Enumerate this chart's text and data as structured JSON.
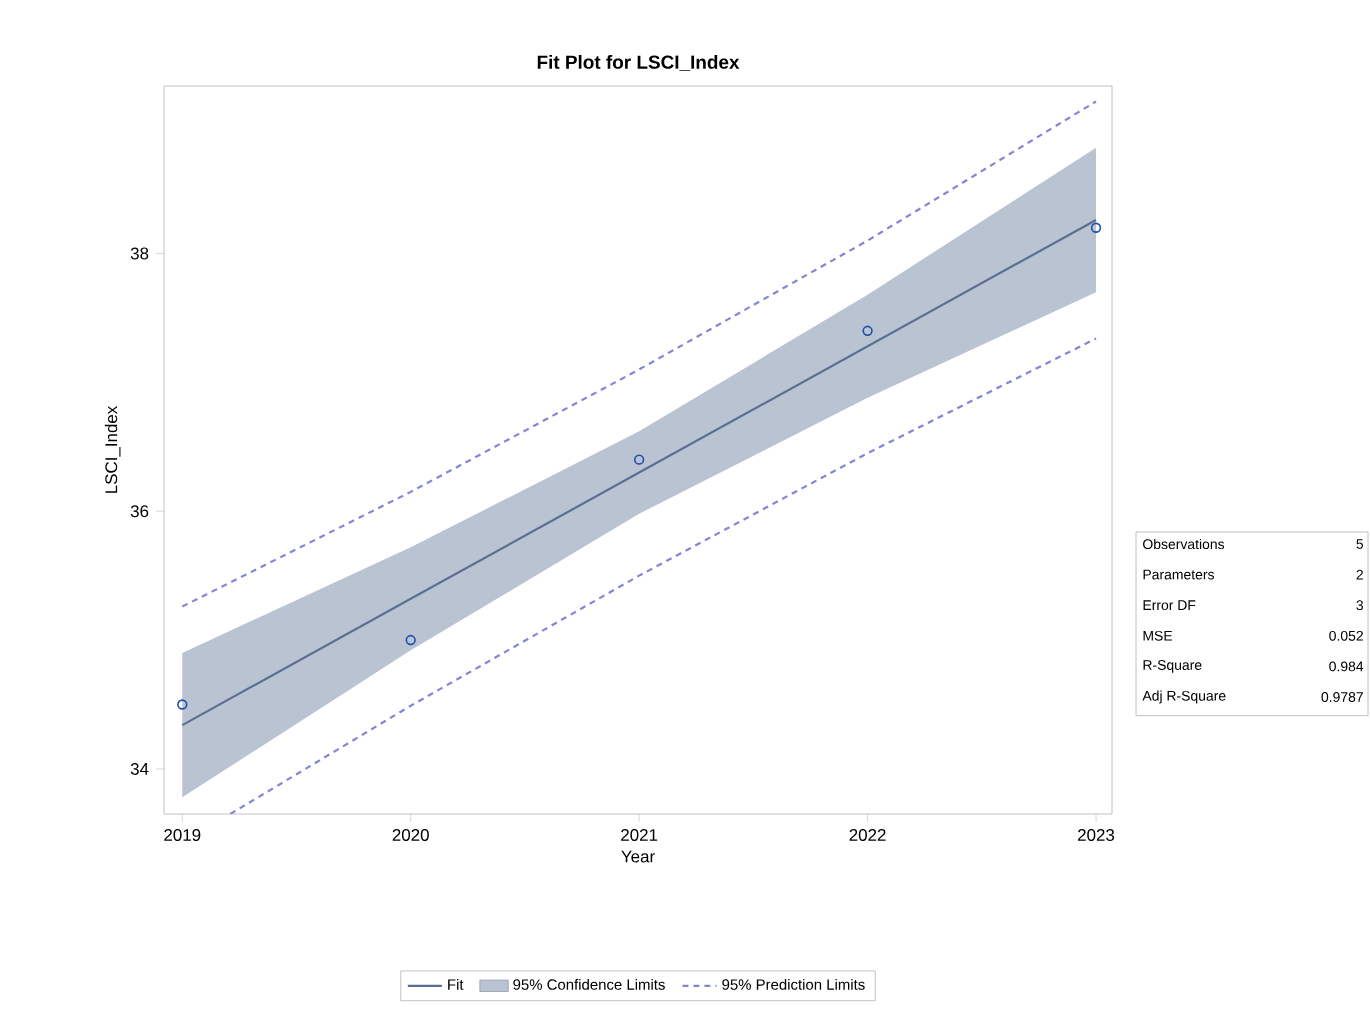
{
  "chart_data": {
    "type": "line",
    "title": "Fit Plot for LSCI_Index",
    "xlabel": "Year",
    "ylabel": "LSCI_Index",
    "x": [
      2019,
      2020,
      2021,
      2022,
      2023
    ],
    "series": [
      {
        "name": "Fit",
        "color": "#5a6f93",
        "line_style": "solid",
        "values": [
          34.34,
          35.32,
          36.3,
          37.28,
          38.26
        ],
        "lower": [
          33.78,
          34.92,
          35.98,
          36.88,
          37.7
        ],
        "upper": [
          34.9,
          35.72,
          36.62,
          37.68,
          38.82
        ]
      },
      {
        "name": "95% Prediction Limits",
        "color": "#8585d6",
        "line_style": "dashed",
        "values": [
          35.26,
          36.15,
          37.1,
          38.1,
          39.18
        ]
      },
      {
        "color": "#8585d6",
        "line_style": "dashed",
        "x": [
          2019.21,
          2020,
          2021,
          2022,
          2023
        ],
        "values": [
          33.65,
          34.49,
          35.5,
          36.45,
          37.34
        ]
      },
      {
        "type": "scatter",
        "color": "#1f4fa8",
        "marker": "circle",
        "values": [
          34.5,
          35.0,
          36.4,
          37.4,
          38.2
        ]
      }
    ],
    "xlim": [
      2018.92,
      2023.07
    ],
    "ylim": [
      33.65,
      39.3
    ],
    "xticks": [
      2019,
      2020,
      2021,
      2022,
      2023
    ],
    "yticks": [
      34,
      36,
      38
    ],
    "grid": false,
    "legend": "bottom",
    "annotations": [
      "Observations",
      "5",
      "Parameters",
      "2",
      "Error DF",
      "3",
      "MSE",
      "0.052",
      "R-Square",
      "0.984",
      "Adj R-Square",
      "0.9787",
      "95% Confidence Limits"
    ]
  }
}
